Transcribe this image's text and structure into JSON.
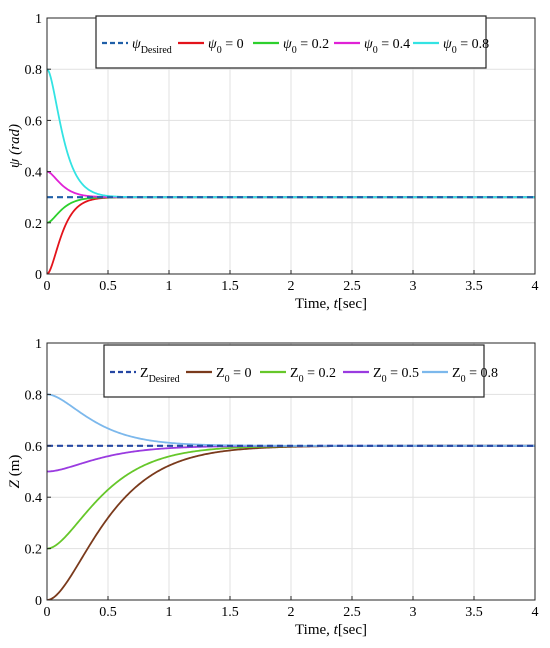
{
  "chart_data": [
    {
      "type": "line",
      "xlabel_prefix": "Time, ",
      "xlabel_var": "t",
      "xlabel_suffix": "[sec]",
      "ylabel_symbol": "ψ",
      "ylabel_unit": "(rad)",
      "xlim": [
        0,
        4
      ],
      "ylim": [
        0,
        1
      ],
      "xticks": [
        "0",
        "0.5",
        "1",
        "1.5",
        "2",
        "2.5",
        "3",
        "3.5",
        "4"
      ],
      "yticks": [
        "0",
        "0.2",
        "0.4",
        "0.6",
        "0.8",
        "1"
      ],
      "grid": true,
      "legend_position": "top-right",
      "target": 0.3,
      "series": [
        {
          "name_main": "ψ",
          "name_sub": "Desired",
          "name_tail": "",
          "color": "#1f5fa8",
          "dashed": true,
          "y0": 0.3,
          "kind": "const"
        },
        {
          "name_main": "ψ",
          "name_sub": "0",
          "name_tail": " = 0",
          "color": "#e3131b",
          "dashed": false,
          "y0": 0.0,
          "kind": "pd",
          "tau": 0.07
        },
        {
          "name_main": "ψ",
          "name_sub": "0",
          "name_tail": " = 0.2",
          "color": "#2dd02d",
          "dashed": false,
          "y0": 0.2,
          "kind": "pd",
          "tau": 0.07
        },
        {
          "name_main": "ψ",
          "name_sub": "0",
          "name_tail": " = 0.4",
          "color": "#e021d6",
          "dashed": false,
          "y0": 0.4,
          "kind": "pd",
          "tau": 0.07
        },
        {
          "name_main": "ψ",
          "name_sub": "0",
          "name_tail": " = 0.8",
          "color": "#33e3e3",
          "dashed": false,
          "y0": 0.8,
          "kind": "pd",
          "tau": 0.075
        }
      ]
    },
    {
      "type": "line",
      "xlabel_prefix": "Time, ",
      "xlabel_var": "t",
      "xlabel_suffix": "[sec]",
      "ylabel_symbol": "Z",
      "ylabel_unit": "(m)",
      "xlim": [
        0,
        4
      ],
      "ylim": [
        0,
        1
      ],
      "xticks": [
        "0",
        "0.5",
        "1",
        "1.5",
        "2",
        "2.5",
        "3",
        "3.5",
        "4"
      ],
      "yticks": [
        "0",
        "0.2",
        "0.4",
        "0.6",
        "0.8",
        "1"
      ],
      "grid": true,
      "legend_position": "top-right",
      "target": 0.6,
      "series": [
        {
          "name_main": "Z",
          "name_sub": "Desired",
          "name_tail": "",
          "color": "#2547a3",
          "dashed": true,
          "y0": 0.6,
          "kind": "const"
        },
        {
          "name_main": "Z",
          "name_sub": "0",
          "name_tail": " = 0",
          "color": "#7a3a1c",
          "dashed": false,
          "y0": 0.0,
          "kind": "pd",
          "tau": 0.28
        },
        {
          "name_main": "Z",
          "name_sub": "0",
          "name_tail": " = 0.2",
          "color": "#66c72a",
          "dashed": false,
          "y0": 0.2,
          "kind": "pd",
          "tau": 0.26
        },
        {
          "name_main": "Z",
          "name_sub": "0",
          "name_tail": " = 0.5",
          "color": "#9a3be0",
          "dashed": false,
          "y0": 0.5,
          "kind": "pd",
          "tau": 0.25
        },
        {
          "name_main": "Z",
          "name_sub": "0",
          "name_tail": " = 0.8",
          "color": "#7cb8ec",
          "dashed": false,
          "y0": 0.8,
          "kind": "pd",
          "tau": 0.22
        }
      ]
    }
  ]
}
